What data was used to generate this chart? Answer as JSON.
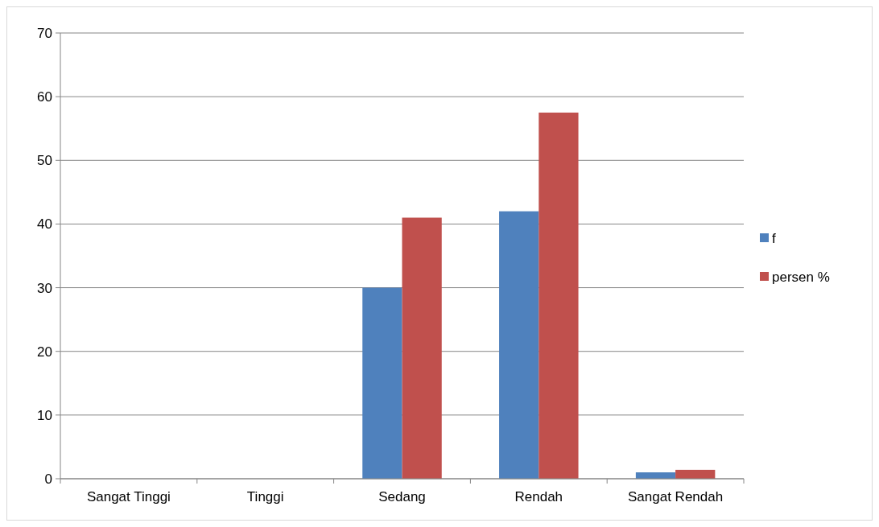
{
  "chart_data": {
    "type": "bar",
    "categories": [
      "Sangat Tinggi",
      "Tinggi",
      "Sedang",
      "Rendah",
      "Sangat Rendah"
    ],
    "series": [
      {
        "name": "f",
        "color": "#4f81bd",
        "values": [
          0,
          0,
          30,
          42,
          1
        ]
      },
      {
        "name": "persen %",
        "color": "#c0504d",
        "values": [
          0,
          0,
          41,
          57.5,
          1.4
        ]
      }
    ],
    "ylim": [
      0,
      70
    ],
    "yticks": [
      0,
      10,
      20,
      30,
      40,
      50,
      60,
      70
    ],
    "grid": "y",
    "legend": "right"
  }
}
